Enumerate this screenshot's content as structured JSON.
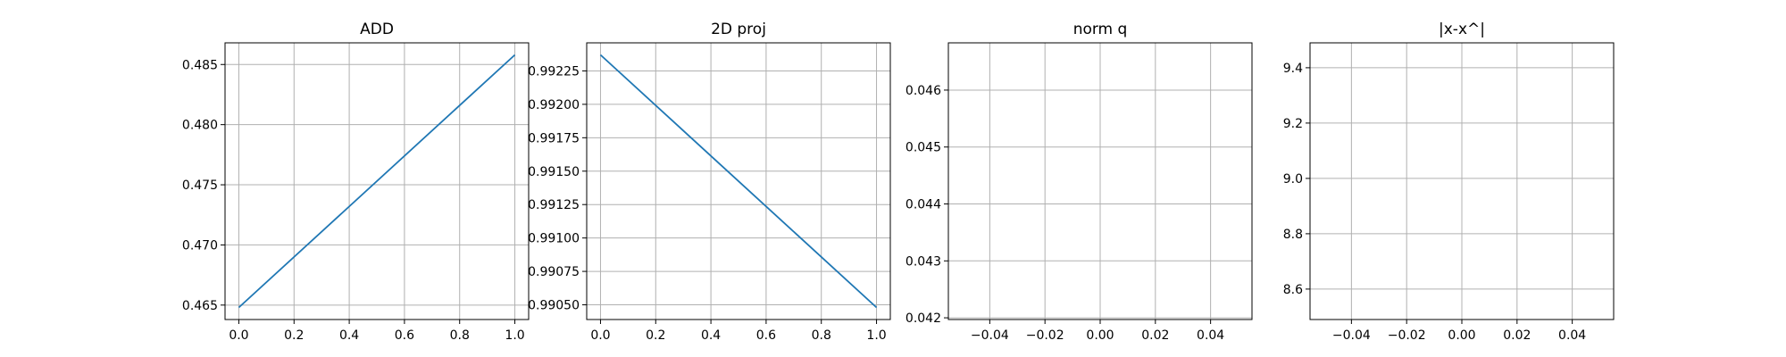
{
  "chart_data": [
    {
      "type": "line",
      "title": "ADD",
      "xlabel": "",
      "ylabel": "",
      "grid": true,
      "xlim": [
        -0.05,
        1.05
      ],
      "ylim": [
        0.4638,
        0.4868
      ],
      "xticks": [
        0.0,
        0.2,
        0.4,
        0.6,
        0.8,
        1.0
      ],
      "xtick_labels": [
        "0.0",
        "0.2",
        "0.4",
        "0.6",
        "0.8",
        "1.0"
      ],
      "yticks": [
        0.465,
        0.47,
        0.475,
        0.48,
        0.485
      ],
      "ytick_labels": [
        "0.465",
        "0.470",
        "0.475",
        "0.480",
        "0.485"
      ],
      "series": [
        {
          "x": [
            0,
            1
          ],
          "y": [
            0.4648,
            0.4858
          ]
        }
      ]
    },
    {
      "type": "line",
      "title": "2D proj",
      "xlabel": "",
      "ylabel": "",
      "grid": true,
      "xlim": [
        -0.05,
        1.05
      ],
      "ylim": [
        0.99039,
        0.99246
      ],
      "xticks": [
        0.0,
        0.2,
        0.4,
        0.6,
        0.8,
        1.0
      ],
      "xtick_labels": [
        "0.0",
        "0.2",
        "0.4",
        "0.6",
        "0.8",
        "1.0"
      ],
      "yticks": [
        0.9905,
        0.99075,
        0.991,
        0.99125,
        0.9915,
        0.99175,
        0.992,
        0.99225
      ],
      "ytick_labels": [
        "0.99050",
        "0.99075",
        "0.99100",
        "0.99125",
        "0.99150",
        "0.99175",
        "0.99200",
        "0.99225"
      ],
      "series": [
        {
          "x": [
            0,
            1
          ],
          "y": [
            0.99237,
            0.99048
          ]
        }
      ]
    },
    {
      "type": "line",
      "title": "norm q",
      "xlabel": "",
      "ylabel": "",
      "grid": true,
      "xlim": [
        -0.055,
        0.055
      ],
      "ylim": [
        0.04197,
        0.04683
      ],
      "xticks": [
        -0.04,
        -0.02,
        0.0,
        0.02,
        0.04
      ],
      "xtick_labels": [
        "−0.04",
        "−0.02",
        "0.00",
        "0.02",
        "0.04"
      ],
      "yticks": [
        0.042,
        0.043,
        0.044,
        0.045,
        0.046
      ],
      "ytick_labels": [
        "0.042",
        "0.043",
        "0.044",
        "0.045",
        "0.046"
      ],
      "series": [
        {
          "x": [],
          "y": []
        }
      ]
    },
    {
      "type": "line",
      "title": "|x-x^|",
      "xlabel": "",
      "ylabel": "",
      "grid": true,
      "xlim": [
        -0.055,
        0.055
      ],
      "ylim": [
        8.49,
        9.49
      ],
      "xticks": [
        -0.04,
        -0.02,
        0.0,
        0.02,
        0.04
      ],
      "xtick_labels": [
        "−0.04",
        "−0.02",
        "0.00",
        "0.02",
        "0.04"
      ],
      "yticks": [
        8.6,
        8.8,
        9.0,
        9.2,
        9.4
      ],
      "ytick_labels": [
        "8.6",
        "8.8",
        "9.0",
        "9.2",
        "9.4"
      ],
      "series": [
        {
          "x": [],
          "y": []
        }
      ]
    }
  ],
  "colors": {
    "line": "#1f77b4",
    "grid": "#b0b0b0",
    "axis": "#000000"
  }
}
